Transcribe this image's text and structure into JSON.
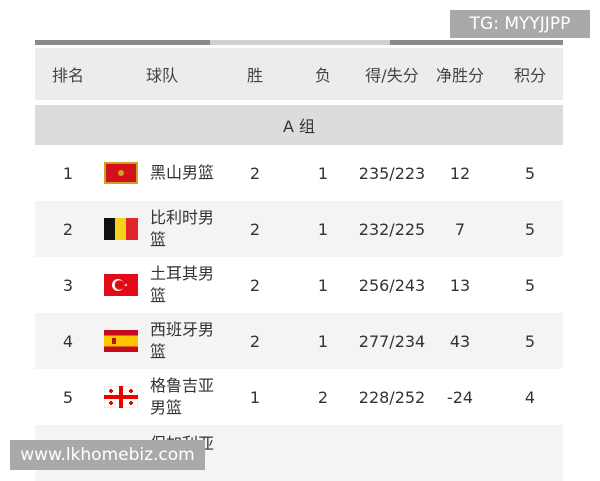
{
  "watermark_top": "TG: MYYJJPP",
  "table": {
    "headers": [
      "排名",
      "球队",
      "胜",
      "负",
      "得/失分",
      "净胜分",
      "积分"
    ],
    "group": "A 组",
    "rows": [
      [
        1,
        "黑山男篮",
        2,
        1,
        "235/223",
        12,
        5
      ],
      [
        2,
        "比利时男篮",
        2,
        1,
        "232/225",
        7,
        5
      ],
      [
        3,
        "土耳其男篮",
        2,
        1,
        "256/243",
        13,
        5
      ],
      [
        4,
        "西班牙男篮",
        2,
        1,
        "277/234",
        43,
        5
      ],
      [
        5,
        "格鲁吉亚男篮",
        1,
        2,
        "228/252",
        -24,
        4
      ]
    ],
    "partial_row": {
      "team": "保加利亚"
    }
  },
  "watermark_bottom": "www.lkhomebiz.com"
}
